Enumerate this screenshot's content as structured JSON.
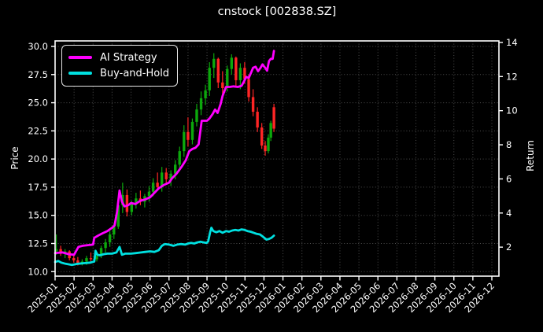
{
  "title": "cnstock [002838.SZ]",
  "legend": {
    "items": [
      {
        "label": "AI Strategy",
        "color": "#ff00ff"
      },
      {
        "label": "Buy-and-Hold",
        "color": "#00e0e0"
      }
    ]
  },
  "chart_data": {
    "type": "candlestick+line",
    "title": "cnstock [002838.SZ]",
    "grid": true,
    "legend_position": "upper-left",
    "colors": {
      "background": "#000000",
      "grid": "#4d4d4d",
      "spine": "#ffffff",
      "text": "#ffffff",
      "candle_up": "#0ca80c",
      "candle_down": "#ff2525",
      "ai_strategy": "#ff00ff",
      "buy_and_hold": "#00e0e0"
    },
    "x_axis": {
      "rotation": 45,
      "tick_labels": [
        "2025-01",
        "2025-02",
        "2025-03",
        "2025-04",
        "2025-05",
        "2025-06",
        "2025-07",
        "2025-08",
        "2025-09",
        "2025-10",
        "2025-11",
        "2025-12",
        "2026-01",
        "2026-02",
        "2026-03",
        "2026-04",
        "2026-05",
        "2026-06",
        "2026-07",
        "2026-08",
        "2026-09",
        "2026-10",
        "2026-11",
        "2026-12"
      ]
    },
    "left_axis": {
      "label": "Price",
      "tick_values": [
        10.0,
        12.5,
        15.0,
        17.5,
        20.0,
        22.5,
        25.0,
        27.5,
        30.0
      ],
      "tick_labels": [
        "10.0",
        "12.5",
        "15.0",
        "17.5",
        "20.0",
        "22.5",
        "25.0",
        "27.5",
        "30.0"
      ],
      "range": [
        9.6,
        30.49
      ]
    },
    "right_axis": {
      "label": "Return",
      "tick_values": [
        2,
        4,
        6,
        8,
        10,
        12,
        14
      ],
      "tick_labels": [
        "2",
        "4",
        "6",
        "8",
        "10",
        "12",
        "14"
      ],
      "range": [
        0.3,
        14.09
      ]
    },
    "candles": {
      "dates": [
        "2025-01-03",
        "2025-01-10",
        "2025-01-17",
        "2025-01-24",
        "2025-01-31",
        "2025-02-07",
        "2025-02-14",
        "2025-02-21",
        "2025-02-28",
        "2025-03-07",
        "2025-03-14",
        "2025-03-21",
        "2025-03-28",
        "2025-04-04",
        "2025-04-11",
        "2025-04-18",
        "2025-04-25",
        "2025-05-02",
        "2025-05-09",
        "2025-05-16",
        "2025-05-23",
        "2025-05-30",
        "2025-06-06",
        "2025-06-13",
        "2025-06-20",
        "2025-06-27",
        "2025-07-04",
        "2025-07-11",
        "2025-07-18",
        "2025-07-25",
        "2025-08-01",
        "2025-08-08",
        "2025-08-15",
        "2025-08-22",
        "2025-08-29",
        "2025-09-05",
        "2025-09-12",
        "2025-09-19",
        "2025-09-26",
        "2025-10-03",
        "2025-10-10",
        "2025-10-17",
        "2025-10-24",
        "2025-10-31",
        "2025-11-07",
        "2025-11-14",
        "2025-11-21",
        "2025-11-28",
        "2025-12-03",
        "2025-12-08",
        "2025-12-12",
        "2025-12-17"
      ],
      "open": [
        11.8,
        12.0,
        11.6,
        11.8,
        11.2,
        11.0,
        10.7,
        10.9,
        11.2,
        11.1,
        11.4,
        12.1,
        12.6,
        13.3,
        14.0,
        15.9,
        16.8,
        15.3,
        16.0,
        16.5,
        16.2,
        16.7,
        17.1,
        17.9,
        17.5,
        18.8,
        18.2,
        18.7,
        19.5,
        20.7,
        22.4,
        21.7,
        23.3,
        24.4,
        25.4,
        26.1,
        28.1,
        28.9,
        26.8,
        26.3,
        28.0,
        29.0,
        27.0,
        28.1,
        27.1,
        25.5,
        24.2,
        22.8,
        21.2,
        20.7,
        21.9,
        24.6
      ],
      "high": [
        13.3,
        12.3,
        12.0,
        11.9,
        11.6,
        11.3,
        11.1,
        11.4,
        11.7,
        11.6,
        12.3,
        12.9,
        13.6,
        14.3,
        16.6,
        17.9,
        17.3,
        16.3,
        17.0,
        17.2,
        16.9,
        17.6,
        18.3,
        18.8,
        19.3,
        19.2,
        19.0,
        19.9,
        21.1,
        23.0,
        23.7,
        23.6,
        24.9,
        26.0,
        26.6,
        28.6,
        29.4,
        29.0,
        27.8,
        28.3,
        29.3,
        29.1,
        28.5,
        28.6,
        27.5,
        26.2,
        24.6,
        23.2,
        21.6,
        22.2,
        23.4,
        24.9
      ],
      "low": [
        11.5,
        11.4,
        11.2,
        11.0,
        10.8,
        10.55,
        10.55,
        10.6,
        10.9,
        10.9,
        11.2,
        11.7,
        12.2,
        12.9,
        13.8,
        15.2,
        14.9,
        15.0,
        15.6,
        15.9,
        15.7,
        16.2,
        16.7,
        17.2,
        17.1,
        17.8,
        17.6,
        18.2,
        19.0,
        20.2,
        21.1,
        21.3,
        22.9,
        23.9,
        24.8,
        25.6,
        27.2,
        26.3,
        25.6,
        26.0,
        27.5,
        26.4,
        26.2,
        26.7,
        25.1,
        23.8,
        22.4,
        20.9,
        20.3,
        20.5,
        21.6,
        22.4
      ],
      "close": [
        12.0,
        11.6,
        11.8,
        11.2,
        11.0,
        10.7,
        10.9,
        11.2,
        11.1,
        11.4,
        12.1,
        12.6,
        13.3,
        14.0,
        15.9,
        16.8,
        15.3,
        16.0,
        16.5,
        16.2,
        16.7,
        17.1,
        17.9,
        17.5,
        18.8,
        18.2,
        18.7,
        19.5,
        20.7,
        22.4,
        21.7,
        23.3,
        24.4,
        25.4,
        26.1,
        28.1,
        28.9,
        26.8,
        26.3,
        28.0,
        29.0,
        27.0,
        28.1,
        27.1,
        25.5,
        24.2,
        22.8,
        21.2,
        20.7,
        21.9,
        23.2,
        22.7
      ]
    },
    "series": [
      {
        "name": "AI Strategy",
        "color": "#ff00ff",
        "dates": [
          "2025-01-01",
          "2025-01-13",
          "2025-01-23",
          "2025-02-01",
          "2025-02-05",
          "2025-02-08",
          "2025-02-15",
          "2025-02-23",
          "2025-03-01",
          "2025-03-03",
          "2025-03-09",
          "2025-03-16",
          "2025-03-24",
          "2025-04-01",
          "2025-04-05",
          "2025-04-09",
          "2025-04-13",
          "2025-04-17",
          "2025-04-21",
          "2025-04-27",
          "2025-05-01",
          "2025-05-08",
          "2025-05-16",
          "2025-05-23",
          "2025-06-01",
          "2025-06-08",
          "2025-06-15",
          "2025-06-23",
          "2025-07-01",
          "2025-07-06",
          "2025-07-13",
          "2025-07-21",
          "2025-07-28",
          "2025-08-03",
          "2025-08-08",
          "2025-08-13",
          "2025-08-18",
          "2025-08-23",
          "2025-09-01",
          "2025-09-05",
          "2025-09-10",
          "2025-09-14",
          "2025-09-18",
          "2025-09-23",
          "2025-09-26",
          "2025-10-01",
          "2025-10-07",
          "2025-10-13",
          "2025-10-20",
          "2025-10-26",
          "2025-10-30",
          "2025-11-03",
          "2025-11-07",
          "2025-11-11",
          "2025-11-14",
          "2025-11-18",
          "2025-11-22",
          "2025-11-26",
          "2025-11-29",
          "2025-12-03",
          "2025-12-06",
          "2025-12-09",
          "2025-12-12",
          "2025-12-15",
          "2025-12-17"
        ],
        "values": [
          11.65,
          11.7,
          11.55,
          11.5,
          11.9,
          12.2,
          12.3,
          12.35,
          12.4,
          13.0,
          13.2,
          13.4,
          13.6,
          13.9,
          14.1,
          15.3,
          17.2,
          16.2,
          15.8,
          15.9,
          16.1,
          16.0,
          16.3,
          16.4,
          16.6,
          17.0,
          17.4,
          17.7,
          17.9,
          18.3,
          18.7,
          19.3,
          19.9,
          20.7,
          20.9,
          21.0,
          21.3,
          23.4,
          23.4,
          23.6,
          24.0,
          24.4,
          24.1,
          24.9,
          25.6,
          26.4,
          26.4,
          26.45,
          26.4,
          26.5,
          26.9,
          27.3,
          27.2,
          27.7,
          28.1,
          28.2,
          27.8,
          28.1,
          28.4,
          28.1,
          27.85,
          28.7,
          28.9,
          28.9,
          29.6
        ]
      },
      {
        "name": "Buy-and-Hold",
        "color": "#00e0e0",
        "dates": [
          "2025-01-01",
          "2025-01-06",
          "2025-01-11",
          "2025-01-18",
          "2025-01-28",
          "2025-02-07",
          "2025-02-17",
          "2025-02-27",
          "2025-03-03",
          "2025-03-05",
          "2025-03-08",
          "2025-03-12",
          "2025-03-18",
          "2025-03-24",
          "2025-04-01",
          "2025-04-08",
          "2025-04-13",
          "2025-04-17",
          "2025-04-22",
          "2025-05-01",
          "2025-05-09",
          "2025-05-17",
          "2025-05-24",
          "2025-06-01",
          "2025-06-08",
          "2025-06-15",
          "2025-06-20",
          "2025-06-25",
          "2025-07-01",
          "2025-07-08",
          "2025-07-14",
          "2025-07-20",
          "2025-07-27",
          "2025-08-01",
          "2025-08-06",
          "2025-08-11",
          "2025-08-16",
          "2025-08-21",
          "2025-08-26",
          "2025-08-31",
          "2025-09-03",
          "2025-09-06",
          "2025-09-08",
          "2025-09-11",
          "2025-09-16",
          "2025-09-21",
          "2025-09-26",
          "2025-10-01",
          "2025-10-06",
          "2025-10-11",
          "2025-10-16",
          "2025-10-21",
          "2025-10-26",
          "2025-10-31",
          "2025-11-05",
          "2025-11-10",
          "2025-11-15",
          "2025-11-20",
          "2025-11-25",
          "2025-11-30",
          "2025-12-05",
          "2025-12-09",
          "2025-12-13",
          "2025-12-17"
        ],
        "values": [
          10.85,
          10.95,
          10.8,
          10.7,
          10.6,
          10.7,
          10.75,
          10.8,
          10.9,
          11.85,
          11.5,
          11.45,
          11.55,
          11.6,
          11.6,
          11.7,
          12.2,
          11.5,
          11.6,
          11.6,
          11.65,
          11.7,
          11.75,
          11.8,
          11.75,
          11.9,
          12.3,
          12.45,
          12.4,
          12.3,
          12.4,
          12.45,
          12.4,
          12.5,
          12.55,
          12.5,
          12.6,
          12.65,
          12.6,
          12.55,
          12.7,
          13.5,
          13.9,
          13.6,
          13.5,
          13.6,
          13.45,
          13.6,
          13.55,
          13.65,
          13.7,
          13.65,
          13.75,
          13.7,
          13.6,
          13.55,
          13.45,
          13.35,
          13.3,
          13.1,
          12.85,
          12.9,
          13.0,
          13.2
        ]
      }
    ]
  }
}
